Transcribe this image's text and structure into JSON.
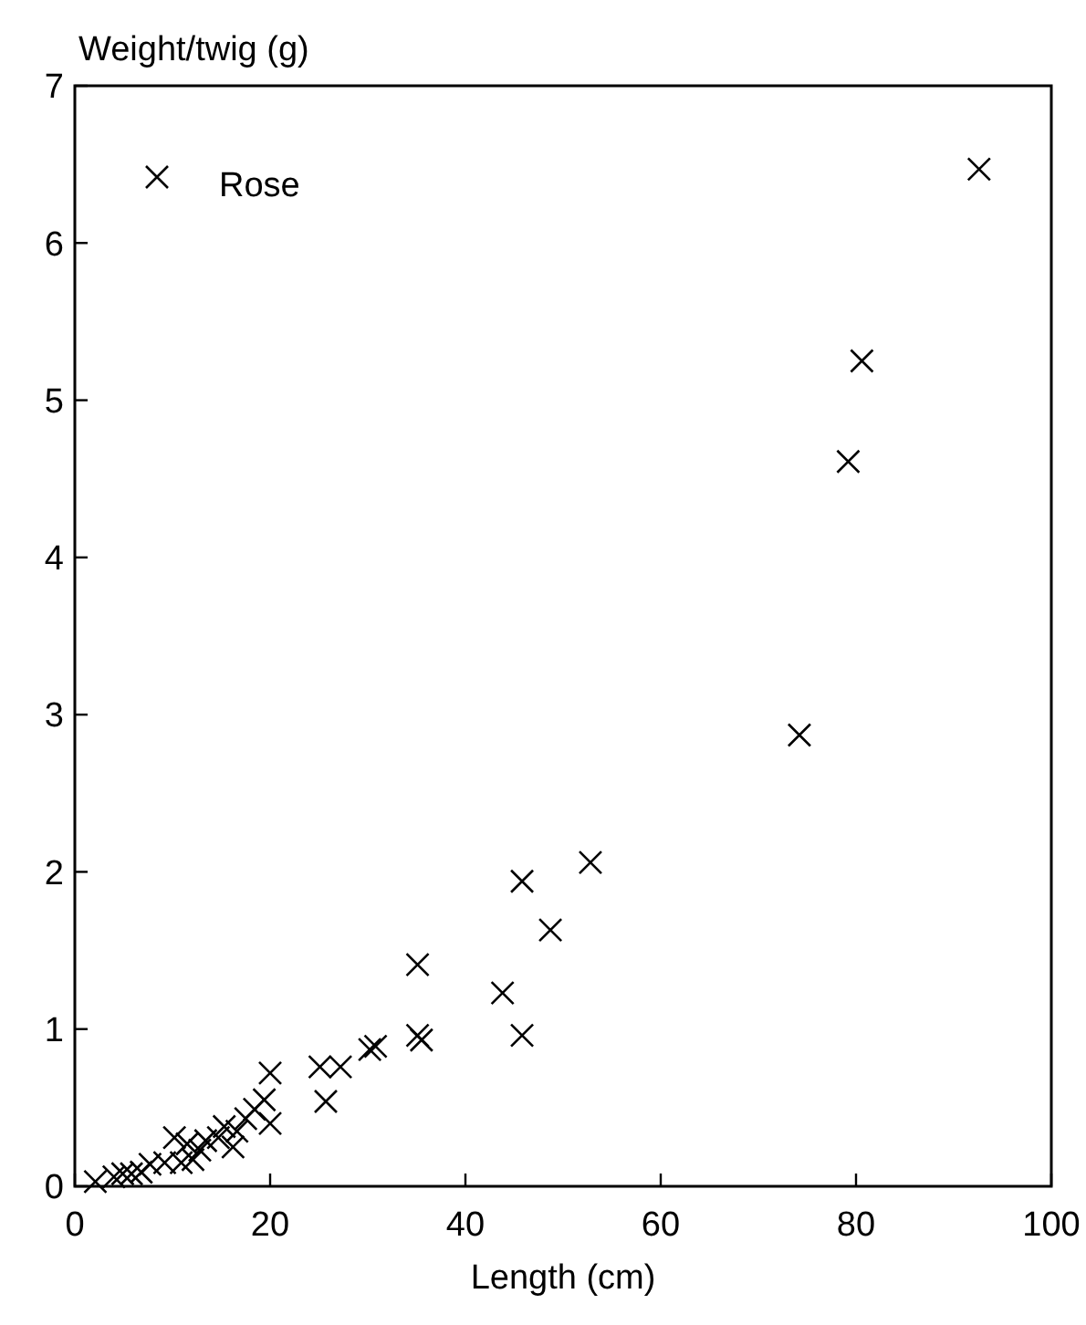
{
  "chart_data": {
    "type": "scatter",
    "xlabel": "Length (cm)",
    "ylabel": "Weight/twig (g)",
    "xlim": [
      0,
      100
    ],
    "xticks": [
      0,
      20,
      40,
      60,
      80,
      100
    ],
    "ylim": [
      0,
      7
    ],
    "yticks": [
      0,
      1,
      2,
      3,
      4,
      5,
      6,
      7
    ],
    "grid": false,
    "legend": "top left",
    "marker": "cross",
    "series": [
      {
        "name": "Rose",
        "color": "#000000",
        "x": [
          92.6,
          80.6,
          79.2,
          74.2,
          52.8,
          45.8,
          48.7,
          43.8,
          45.8,
          35.1,
          35.1,
          35.5,
          30.8,
          30.2,
          25.1,
          27.2,
          25.7,
          20.0,
          19.4,
          20.0,
          18.4,
          17.5,
          16.6,
          15.3,
          14.7,
          13.4,
          12.8,
          11.5,
          10.2,
          12.1,
          10.9,
          9.2,
          7.7,
          6.8,
          5.8,
          4.9,
          4.0,
          2.1,
          16.2
        ],
        "values": [
          6.47,
          5.25,
          4.61,
          2.87,
          2.06,
          1.94,
          1.63,
          1.23,
          0.96,
          1.41,
          0.96,
          0.93,
          0.89,
          0.87,
          0.76,
          0.76,
          0.54,
          0.72,
          0.55,
          0.4,
          0.49,
          0.43,
          0.35,
          0.38,
          0.31,
          0.29,
          0.23,
          0.27,
          0.31,
          0.17,
          0.15,
          0.15,
          0.14,
          0.09,
          0.08,
          0.08,
          0.06,
          0.03,
          0.25
        ]
      }
    ]
  }
}
